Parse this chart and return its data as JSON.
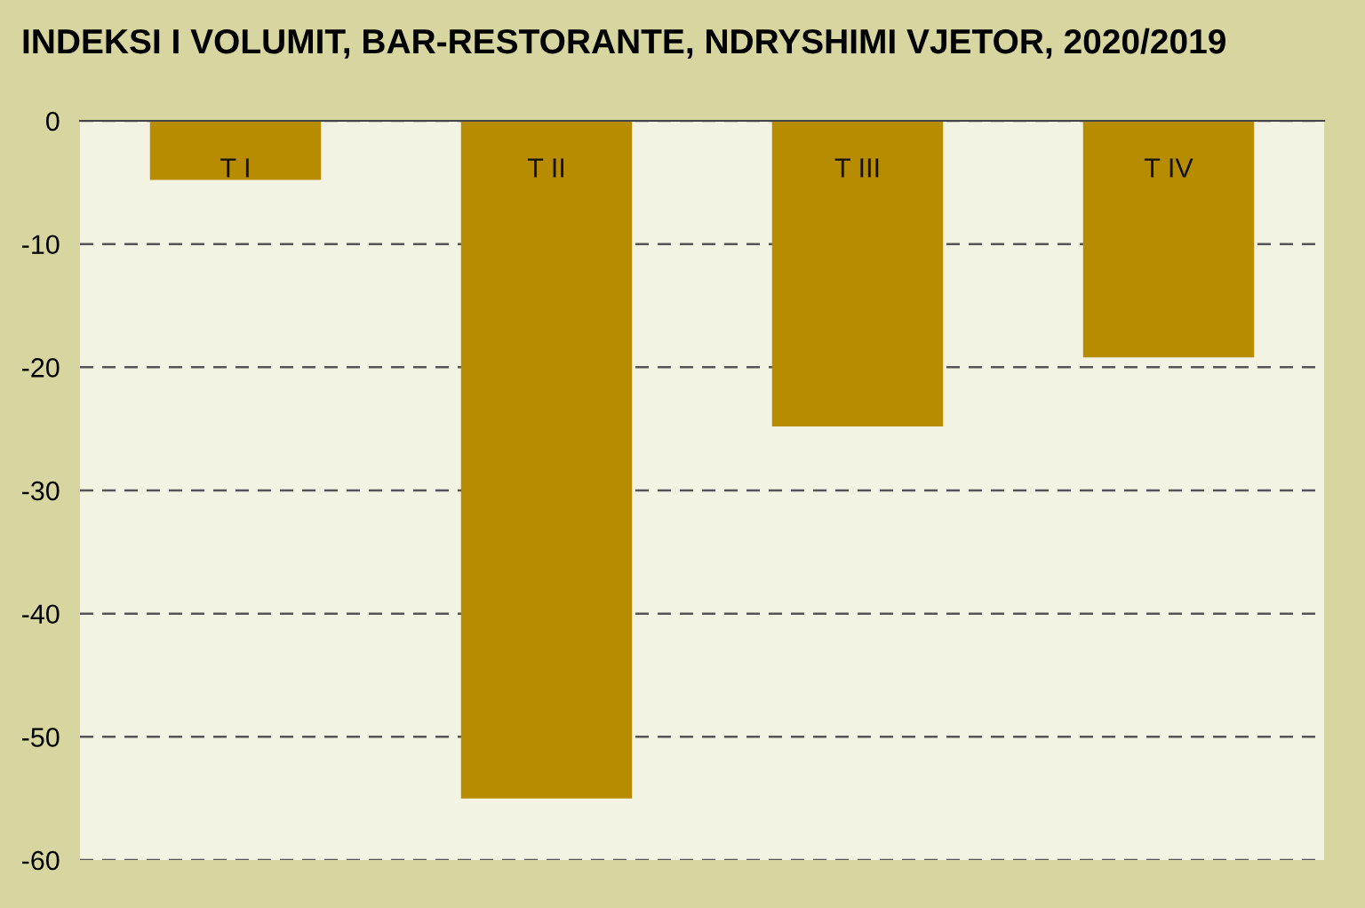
{
  "chart_data": {
    "type": "bar",
    "title": "INDEKSI I VOLUMIT, BAR-RESTORANTE, NDRYSHIMI VJETOR, 2020/2019",
    "categories": [
      "T I",
      "T II",
      "T III",
      "T IV"
    ],
    "values": [
      -4.8,
      -55.0,
      -24.8,
      -19.2
    ],
    "color": "#b88c00",
    "ylim": [
      -60,
      0
    ],
    "yticks": [
      0,
      -10,
      -20,
      -30,
      -40,
      -50,
      -60
    ],
    "grid": "y"
  }
}
